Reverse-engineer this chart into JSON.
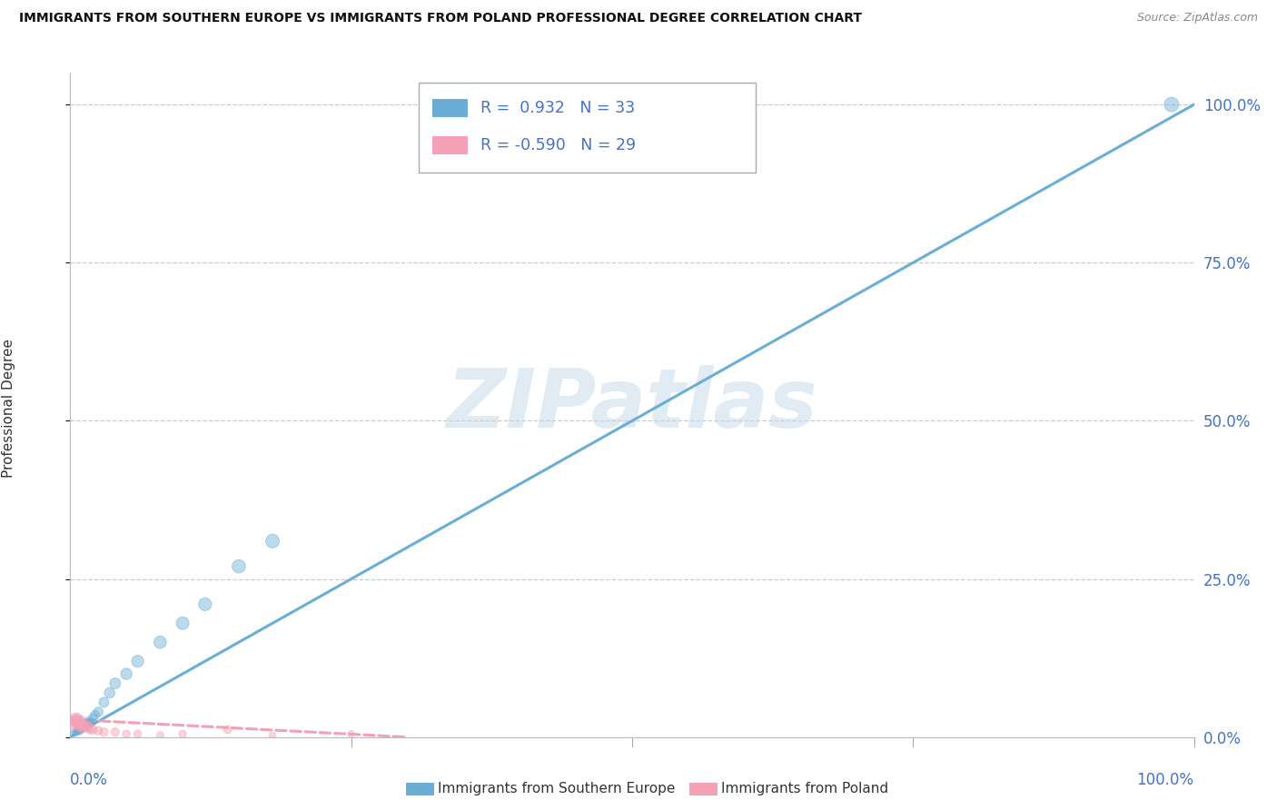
{
  "title": "IMMIGRANTS FROM SOUTHERN EUROPE VS IMMIGRANTS FROM POLAND PROFESSIONAL DEGREE CORRELATION CHART",
  "source": "Source: ZipAtlas.com",
  "ylabel": "Professional Degree",
  "ytick_values": [
    0,
    25,
    50,
    75,
    100
  ],
  "xlim": [
    0,
    100
  ],
  "ylim": [
    0,
    105
  ],
  "series1_name": "Immigrants from Southern Europe",
  "series1_color": "#6aaed6",
  "series2_name": "Immigrants from Poland",
  "series2_color": "#f4a0b5",
  "series1_R": 0.932,
  "series1_N": 33,
  "series2_R": -0.59,
  "series2_N": 29,
  "watermark": "ZIPatlas",
  "background_color": "#ffffff",
  "grid_color": "#cccccc",
  "line1_x0": 0,
  "line1_y0": 0,
  "line1_x1": 100,
  "line1_y1": 100,
  "line2_x0": 0,
  "line2_y0": 2.8,
  "line2_x1": 30,
  "line2_y1": 0.0,
  "scatter1_x": [
    0.3,
    0.4,
    0.5,
    0.6,
    0.7,
    0.7,
    0.8,
    0.9,
    0.9,
    1.0,
    1.0,
    1.1,
    1.2,
    1.3,
    1.4,
    1.5,
    1.6,
    1.7,
    1.8,
    2.0,
    2.2,
    2.5,
    3.0,
    3.5,
    4.0,
    5.0,
    6.0,
    8.0,
    10.0,
    12.0,
    15.0,
    18.0,
    98.0
  ],
  "scatter1_y": [
    0.8,
    0.5,
    0.9,
    0.7,
    1.0,
    0.8,
    1.2,
    0.9,
    1.1,
    1.5,
    1.8,
    1.3,
    1.6,
    2.0,
    1.8,
    2.2,
    2.5,
    2.0,
    2.3,
    3.0,
    3.5,
    4.0,
    5.5,
    7.0,
    8.5,
    10.0,
    12.0,
    15.0,
    18.0,
    21.0,
    27.0,
    31.0,
    100.0
  ],
  "scatter1_s": [
    20,
    18,
    22,
    20,
    24,
    20,
    26,
    22,
    24,
    30,
    32,
    28,
    34,
    38,
    36,
    40,
    44,
    40,
    42,
    48,
    52,
    56,
    62,
    68,
    74,
    80,
    88,
    96,
    100,
    105,
    110,
    115,
    130
  ],
  "scatter2_x": [
    0.2,
    0.3,
    0.4,
    0.5,
    0.5,
    0.6,
    0.7,
    0.7,
    0.8,
    0.9,
    1.0,
    1.0,
    1.1,
    1.2,
    1.3,
    1.5,
    1.6,
    1.8,
    2.0,
    2.5,
    3.0,
    4.0,
    5.0,
    6.0,
    8.0,
    10.0,
    14.0,
    18.0,
    25.0
  ],
  "scatter2_y": [
    2.0,
    2.5,
    2.8,
    2.2,
    3.0,
    2.5,
    2.0,
    2.8,
    1.8,
    2.2,
    2.5,
    1.5,
    2.0,
    1.8,
    1.5,
    1.8,
    1.5,
    1.2,
    1.2,
    1.0,
    0.8,
    0.8,
    0.5,
    0.5,
    0.3,
    0.5,
    1.2,
    0.3,
    0.5
  ],
  "scatter2_s": [
    50,
    55,
    60,
    65,
    70,
    68,
    65,
    72,
    68,
    65,
    62,
    58,
    60,
    56,
    54,
    58,
    54,
    50,
    52,
    46,
    44,
    40,
    36,
    38,
    30,
    34,
    42,
    26,
    28
  ]
}
